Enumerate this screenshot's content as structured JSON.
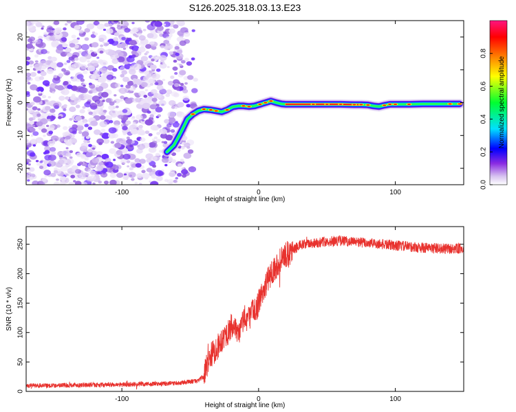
{
  "title": "S126.2025.318.03.13.E23",
  "colors": {
    "snr_line": "#e8322e",
    "frame": "#000000"
  },
  "colorbar": {
    "label": "Normalized spectral amplitude",
    "range": [
      0,
      1
    ],
    "ticks": [
      0.0,
      0.2,
      0.4,
      0.6,
      0.8
    ],
    "tick_labels": [
      "0.0",
      "0.2",
      "0.4",
      "0.6",
      "0.8"
    ]
  },
  "chart_data": [
    {
      "type": "heatmap",
      "title": "S126.2025.318.03.13.E23",
      "xlabel": "Height of straight line (km)",
      "ylabel": "Frequency (Hz)",
      "xlim": [
        -170,
        150
      ],
      "ylim": [
        -25,
        25
      ],
      "xticks": [
        -100,
        0,
        100
      ],
      "xtick_labels": [
        "-100",
        "0",
        "100"
      ],
      "yticks": [
        -20,
        -10,
        0,
        10,
        20
      ],
      "ytick_labels": [
        "-20",
        "-10",
        "0",
        "10",
        "20"
      ],
      "noise_region_x": [
        -170,
        -52
      ],
      "ridge": {
        "x": [
          -67,
          -62,
          -58,
          -55,
          -52,
          -48,
          -44,
          -40,
          -35,
          -31,
          -27,
          -23,
          -19,
          -15,
          -11,
          -7,
          -3,
          1,
          5,
          9,
          13,
          17,
          20,
          30,
          40,
          50,
          60,
          70,
          75,
          80,
          84,
          88,
          92,
          96,
          100,
          110,
          120,
          130,
          140,
          147
        ],
        "frequency": [
          -15,
          -13,
          -10,
          -7.5,
          -5,
          -3.5,
          -2.5,
          -2,
          -2.2,
          -2.5,
          -2.8,
          -2.2,
          -1.3,
          -1,
          -1,
          -1.2,
          -1,
          -0.5,
          0,
          0.5,
          0,
          -0.4,
          -0.5,
          -0.5,
          -0.5,
          -0.5,
          -0.5,
          -0.6,
          -0.6,
          -0.7,
          -1,
          -1.2,
          -0.8,
          -0.5,
          -0.5,
          -0.5,
          -0.4,
          -0.4,
          -0.4,
          -0.4
        ]
      }
    },
    {
      "type": "line",
      "xlabel": "Height of straight line (km)",
      "ylabel": "SNR (10 * v/v)",
      "xlim": [
        -170,
        150
      ],
      "ylim": [
        0,
        280
      ],
      "xticks": [
        -100,
        0,
        100
      ],
      "xtick_labels": [
        "-100",
        "0",
        "100"
      ],
      "yticks": [
        0,
        50,
        100,
        150,
        200,
        250
      ],
      "ytick_labels": [
        "0",
        "50",
        "100",
        "150",
        "200",
        "250"
      ],
      "series": [
        {
          "name": "SNR",
          "x": [
            -170,
            -150,
            -130,
            -110,
            -90,
            -70,
            -55,
            -45,
            -40,
            -38,
            -35,
            -32,
            -30,
            -28,
            -25,
            -22,
            -20,
            -18,
            -15,
            -12,
            -10,
            -8,
            -5,
            -2,
            0,
            2,
            5,
            8,
            10,
            12,
            15,
            18,
            20,
            25,
            30,
            40,
            50,
            60,
            70,
            80,
            90,
            100,
            110,
            120,
            130,
            140,
            150
          ],
          "y": [
            10,
            10,
            11,
            11,
            12,
            13,
            15,
            18,
            25,
            45,
            60,
            70,
            75,
            85,
            95,
            100,
            110,
            105,
            95,
            115,
            130,
            120,
            135,
            140,
            150,
            165,
            180,
            195,
            205,
            210,
            220,
            228,
            232,
            240,
            248,
            252,
            255,
            256,
            254,
            252,
            250,
            248,
            246,
            244,
            243,
            242,
            243
          ]
        }
      ]
    }
  ]
}
